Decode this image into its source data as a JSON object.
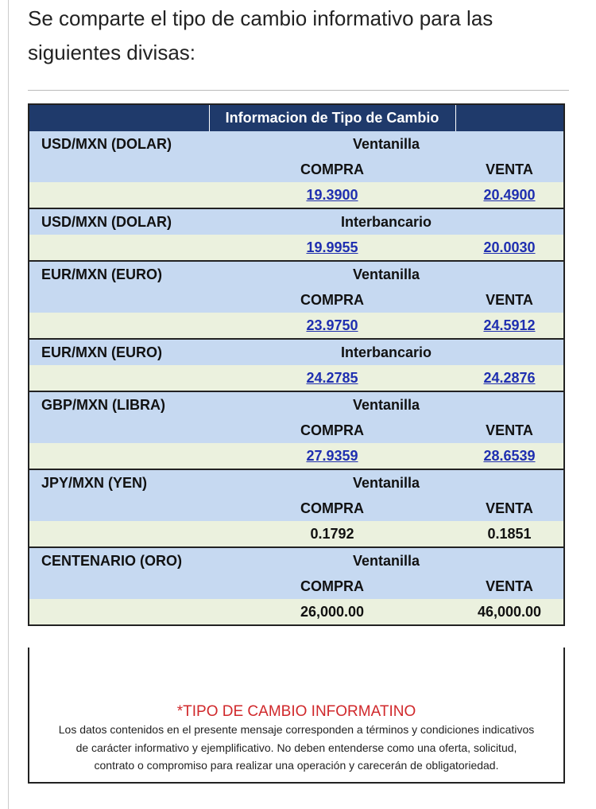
{
  "intro": {
    "lines": [
      "Se comparte el tipo de cambio informativo para las",
      "siguientes divisas:"
    ]
  },
  "table": {
    "title": "Informacion de Tipo de Cambio",
    "groups": [
      {
        "pair": "USD/MXN (DOLAR)",
        "type": "Ventanilla",
        "headers": [
          "COMPRA",
          "VENTA"
        ],
        "values": [
          "19.3900",
          "20.4900"
        ],
        "links": true
      },
      {
        "pair": "USD/MXN (DOLAR)",
        "type": "Interbancario",
        "values": [
          "19.9955",
          "20.0030"
        ],
        "links": true
      },
      {
        "pair": "EUR/MXN (EURO)",
        "type": "Ventanilla",
        "headers": [
          "COMPRA",
          "VENTA"
        ],
        "values": [
          "23.9750",
          "24.5912"
        ],
        "links": true
      },
      {
        "pair": "EUR/MXN (EURO)",
        "type": "Interbancario",
        "values": [
          "24.2785",
          "24.2876"
        ],
        "links": true
      },
      {
        "pair": "GBP/MXN (LIBRA)",
        "type": "Ventanilla",
        "headers": [
          "COMPRA",
          "VENTA"
        ],
        "values": [
          "27.9359",
          "28.6539"
        ],
        "links": true
      },
      {
        "pair": "JPY/MXN (YEN)",
        "type": "Ventanilla",
        "headers": [
          "COMPRA",
          "VENTA"
        ],
        "values": [
          "0.1792",
          "0.1851"
        ],
        "links": false
      },
      {
        "pair": "CENTENARIO (ORO)",
        "type": "Ventanilla",
        "headers": [
          "COMPRA",
          "VENTA"
        ],
        "values": [
          "26,000.00",
          "46,000.00"
        ],
        "links": false
      }
    ]
  },
  "footnote": {
    "title": "*TIPO DE CAMBIO INFORMATINO",
    "lines": [
      "Los datos contenidos en el presente mensaje corresponden a términos y condiciones indicativos",
      "de carácter informativo y ejemplificativo. No deben entenderse como una oferta, solicitud,",
      "contrato o compromiso para realizar una operación y carecerán de obligatoriedad."
    ]
  }
}
